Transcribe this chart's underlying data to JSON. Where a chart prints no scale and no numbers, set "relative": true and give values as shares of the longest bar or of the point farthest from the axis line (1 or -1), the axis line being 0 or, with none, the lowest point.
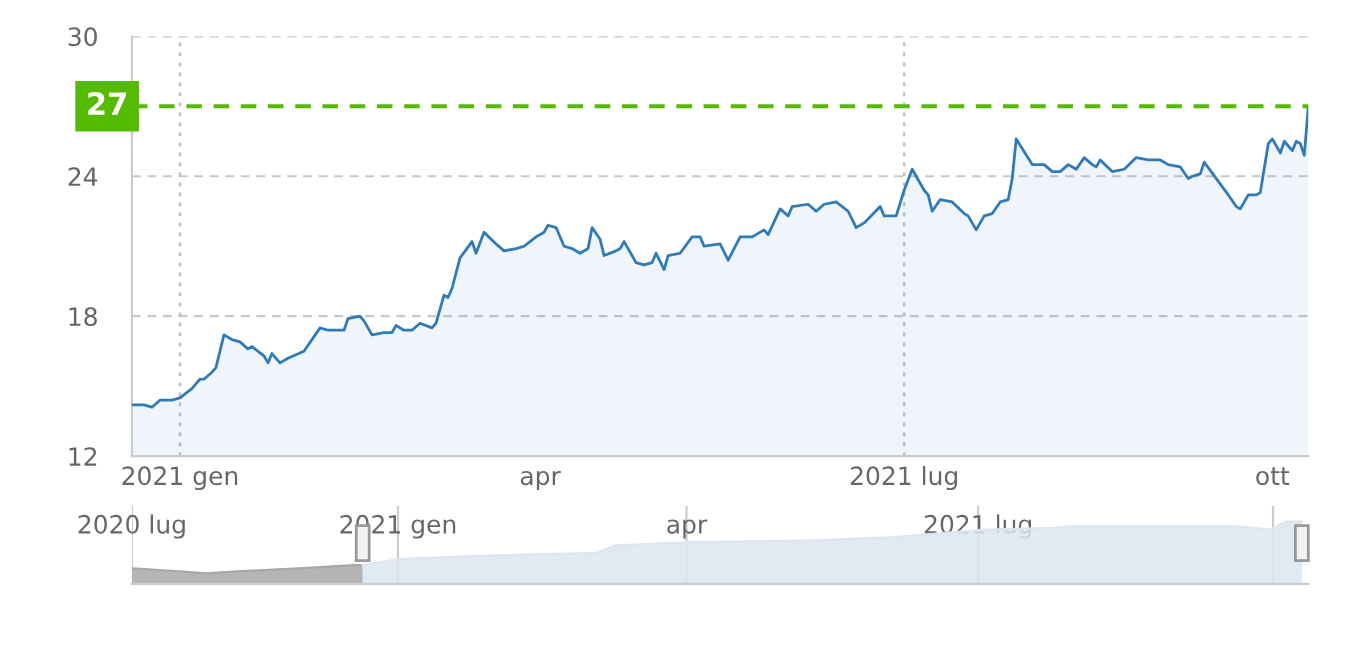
{
  "chart_data": [
    {
      "type": "area",
      "xlim": [
        "2020-12-20",
        "2021-10-10"
      ],
      "ylim": [
        12,
        30
      ],
      "yticks": [
        12,
        18,
        24,
        30
      ],
      "xticks": [
        {
          "value": "2021-01-01",
          "label": "2021 gen"
        },
        {
          "value": "2021-04-01",
          "label": "apr"
        },
        {
          "value": "2021-07-01",
          "label": "2021 lug"
        },
        {
          "value": "2021-10-01",
          "label": "ott"
        }
      ],
      "grid": "y",
      "ref_lines": [
        {
          "axis": "y",
          "value": 27,
          "label": "27",
          "color": "#55bb00",
          "line_style": "dashed"
        },
        {
          "axis": "x",
          "value": "2021-01-01",
          "color": "#c0c0c0",
          "line_style": "dotted"
        },
        {
          "axis": "x",
          "value": "2021-07-01",
          "color": "#c0c0c0",
          "line_style": "dotted"
        }
      ],
      "series": [
        {
          "color": "#2f7ab9",
          "x": [
            "2020-12-20",
            "2020-12-23",
            "2020-12-25",
            "2020-12-27",
            "2020-12-30",
            "2021-01-01",
            "2021-01-04",
            "2021-01-06",
            "2021-01-07",
            "2021-01-09",
            "2021-01-10",
            "2021-01-12",
            "2021-01-14",
            "2021-01-16",
            "2021-01-18",
            "2021-01-19",
            "2021-01-22",
            "2021-01-23",
            "2021-01-24",
            "2021-01-26",
            "2021-01-28",
            "2021-02-01",
            "2021-02-05",
            "2021-02-07",
            "2021-02-11",
            "2021-02-12",
            "2021-02-15",
            "2021-02-16",
            "2021-02-18",
            "2021-02-21",
            "2021-02-23",
            "2021-02-24",
            "2021-02-26",
            "2021-02-28",
            "2021-03-02",
            "2021-03-05",
            "2021-03-06",
            "2021-03-08",
            "2021-03-09",
            "2021-03-10",
            "2021-03-12",
            "2021-03-15",
            "2021-03-16",
            "2021-03-18",
            "2021-03-21",
            "2021-03-23",
            "2021-03-26",
            "2021-03-28",
            "2021-03-31",
            "2021-04-02",
            "2021-04-03",
            "2021-04-05",
            "2021-04-07",
            "2021-04-09",
            "2021-04-11",
            "2021-04-13",
            "2021-04-14",
            "2021-04-16",
            "2021-04-17",
            "2021-04-20",
            "2021-04-21",
            "2021-04-22",
            "2021-04-23",
            "2021-04-25",
            "2021-04-27",
            "2021-04-29",
            "2021-04-30",
            "2021-05-02",
            "2021-05-03",
            "2021-05-06",
            "2021-05-09",
            "2021-05-11",
            "2021-05-12",
            "2021-05-16",
            "2021-05-18",
            "2021-05-21",
            "2021-05-24",
            "2021-05-27",
            "2021-05-28",
            "2021-05-31",
            "2021-06-02",
            "2021-06-03",
            "2021-06-07",
            "2021-06-09",
            "2021-06-11",
            "2021-06-14",
            "2021-06-17",
            "2021-06-19",
            "2021-06-21",
            "2021-06-25",
            "2021-06-26",
            "2021-06-29",
            "2021-07-01",
            "2021-07-03",
            "2021-07-06",
            "2021-07-07",
            "2021-07-08",
            "2021-07-10",
            "2021-07-13",
            "2021-07-16",
            "2021-07-17",
            "2021-07-19",
            "2021-07-21",
            "2021-07-23",
            "2021-07-25",
            "2021-07-27",
            "2021-07-28",
            "2021-07-29",
            "2021-08-02",
            "2021-08-05",
            "2021-08-07",
            "2021-08-09",
            "2021-08-11",
            "2021-08-13",
            "2021-08-15",
            "2021-08-17",
            "2021-08-18",
            "2021-08-19",
            "2021-08-22",
            "2021-08-25",
            "2021-08-28",
            "2021-08-31",
            "2021-09-03",
            "2021-09-05",
            "2021-09-08",
            "2021-09-10",
            "2021-09-11",
            "2021-09-13",
            "2021-09-14",
            "2021-09-17",
            "2021-09-20",
            "2021-09-22",
            "2021-09-23",
            "2021-09-25",
            "2021-09-27",
            "2021-09-28",
            "2021-09-30",
            "2021-10-01",
            "2021-10-03",
            "2021-10-04",
            "2021-10-06",
            "2021-10-07",
            "2021-10-08",
            "2021-10-09",
            "2021-10-10"
          ],
          "values": [
            14.2,
            14.2,
            14.1,
            14.4,
            14.4,
            14.5,
            14.9,
            15.3,
            15.3,
            15.6,
            15.8,
            17.2,
            17.0,
            16.9,
            16.6,
            16.7,
            16.3,
            16.0,
            16.4,
            16.0,
            16.2,
            16.5,
            17.5,
            17.4,
            17.4,
            17.9,
            18.0,
            17.8,
            17.2,
            17.3,
            17.3,
            17.6,
            17.4,
            17.4,
            17.7,
            17.5,
            17.7,
            18.9,
            18.8,
            19.2,
            20.5,
            21.2,
            20.7,
            21.6,
            21.1,
            20.8,
            20.9,
            21.0,
            21.4,
            21.6,
            21.9,
            21.8,
            21.0,
            20.9,
            20.7,
            20.9,
            21.8,
            21.3,
            20.6,
            20.8,
            20.9,
            21.2,
            20.9,
            20.3,
            20.2,
            20.3,
            20.7,
            20.0,
            20.6,
            20.7,
            21.4,
            21.4,
            21.0,
            21.1,
            20.4,
            21.4,
            21.4,
            21.7,
            21.5,
            22.6,
            22.3,
            22.7,
            22.8,
            22.5,
            22.8,
            22.9,
            22.5,
            21.8,
            22.0,
            22.7,
            22.3,
            22.3,
            23.4,
            24.3,
            23.4,
            23.2,
            22.5,
            23.0,
            22.9,
            22.4,
            22.3,
            21.7,
            22.3,
            22.4,
            22.9,
            23.0,
            23.9,
            25.6,
            24.5,
            24.5,
            24.2,
            24.2,
            24.5,
            24.3,
            24.8,
            24.5,
            24.4,
            24.7,
            24.2,
            24.3,
            24.8,
            24.7,
            24.7,
            24.5,
            24.4,
            23.9,
            24.0,
            24.1,
            24.6,
            23.9,
            23.2,
            22.7,
            22.6,
            23.2,
            23.2,
            23.3,
            25.4,
            25.6,
            25.0,
            25.5,
            25.1,
            25.5,
            25.4,
            24.9,
            27.0
          ]
        }
      ]
    },
    {
      "type": "area",
      "relative": true,
      "tick_labels": "x",
      "grid": "x",
      "xlim": [
        "2020-10-10",
        "2021-10-12"
      ],
      "xticks": [
        {
          "value": "2020-10-10",
          "label": "2020 lug"
        },
        {
          "value": "2021-01-01",
          "label": "2021 gen"
        },
        {
          "value": "2021-04-01",
          "label": "apr"
        },
        {
          "value": "2021-07-01",
          "label": "2021 lug"
        },
        {
          "value": "2021-10-01",
          "label": null
        }
      ],
      "series": [
        {
          "color": "#a8a8a8",
          "x": [
            "2020-10-10",
            "2020-10-25",
            "2020-11-02",
            "2020-11-12",
            "2020-12-01",
            "2020-12-18",
            "2020-12-21"
          ],
          "values": [
            0.25,
            0.2,
            0.17,
            0.2,
            0.25,
            0.3,
            0.3
          ]
        },
        {
          "color": "#dbe6f0",
          "x": [
            "2020-12-21",
            "2021-01-02",
            "2021-01-26",
            "2021-03-04",
            "2021-03-10",
            "2021-04-03",
            "2021-05-11",
            "2021-06-05",
            "2021-07-03",
            "2021-07-25",
            "2021-07-31",
            "2021-09-19",
            "2021-09-30",
            "2021-10-05",
            "2021-10-10"
          ],
          "values": [
            0.3,
            0.4,
            0.45,
            0.5,
            0.62,
            0.67,
            0.7,
            0.75,
            0.87,
            0.9,
            0.93,
            0.93,
            0.87,
            1.0,
            1.0
          ]
        }
      ]
    }
  ]
}
